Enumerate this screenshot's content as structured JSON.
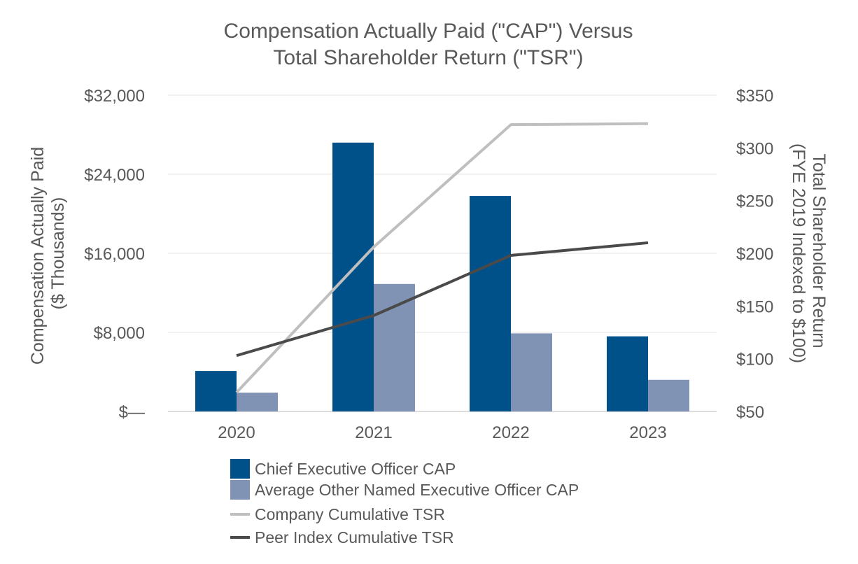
{
  "chart_data": {
    "type": "bar+line",
    "title": [
      "Compensation Actually Paid (\"CAP\") Versus",
      "Total Shareholder Return (\"TSR\")"
    ],
    "categories": [
      "2020",
      "2021",
      "2022",
      "2023"
    ],
    "left_axis": {
      "title": [
        "Compensation Actually Paid",
        "($ Thousands)"
      ],
      "ylim": [
        0,
        32000
      ],
      "ticks": [
        0,
        8000,
        16000,
        24000,
        32000
      ],
      "tick_labels": [
        "$—",
        "$8,000",
        "$16,000",
        "$24,000",
        "$32,000"
      ]
    },
    "right_axis": {
      "title": [
        "Total Shareholder Return",
        "(FYE 2019 Indexed to $100)"
      ],
      "ylim": [
        50,
        350
      ],
      "ticks": [
        50,
        100,
        150,
        200,
        250,
        300,
        350
      ],
      "tick_labels": [
        "$50",
        "$100",
        "$150",
        "$200",
        "$250",
        "$300",
        "$350"
      ]
    },
    "bar_series": [
      {
        "name": "Chief Executive Officer CAP",
        "color": "#00508a",
        "values": [
          4100,
          27200,
          21800,
          7600
        ]
      },
      {
        "name": "Average Other Named Executive Officer CAP",
        "color": "#8193b5",
        "values": [
          1900,
          12900,
          7900,
          3200
        ]
      }
    ],
    "line_series": [
      {
        "name": "Company Cumulative TSR",
        "color": "#bfbfbf",
        "values": [
          68,
          206,
          322,
          323
        ]
      },
      {
        "name": "Peer Index Cumulative TSR",
        "color": "#4a4a4a",
        "values": [
          103,
          141,
          198,
          210
        ]
      }
    ],
    "grid": true,
    "legend_position": "bottom"
  }
}
